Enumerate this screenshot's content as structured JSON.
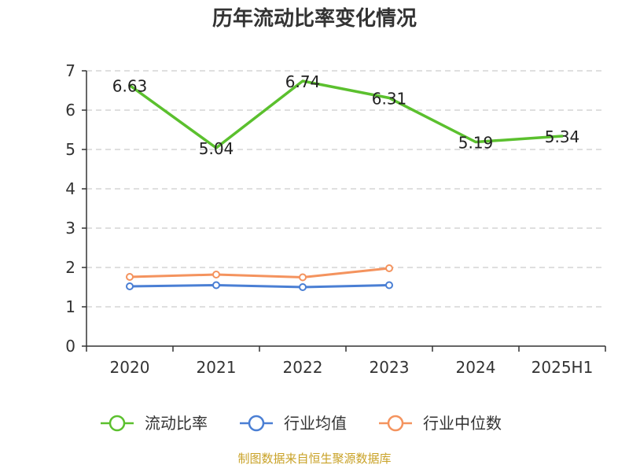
{
  "chart_data": {
    "type": "line",
    "title": "历年流动比率变化情况",
    "categories": [
      "2020",
      "2021",
      "2022",
      "2023",
      "2024",
      "2025H1"
    ],
    "ylim": [
      0,
      7
    ],
    "yticks": [
      0,
      1,
      2,
      3,
      4,
      5,
      6,
      7
    ],
    "grid": true,
    "legend_position": "bottom",
    "series": [
      {
        "name": "流动比率",
        "color": "#5bc02e",
        "values": [
          6.63,
          5.04,
          6.74,
          6.31,
          5.19,
          5.34
        ],
        "labels": [
          "6.63",
          "5.04",
          "6.74",
          "6.31",
          "5.19",
          "5.34"
        ],
        "markers": false
      },
      {
        "name": "行业均值",
        "color": "#4a7fd4",
        "values": [
          1.52,
          1.55,
          1.5,
          1.55,
          null,
          null
        ],
        "markers": true
      },
      {
        "name": "行业中位数",
        "color": "#f4935e",
        "values": [
          1.76,
          1.82,
          1.75,
          1.98,
          null,
          null
        ],
        "markers": true
      }
    ],
    "source": "制图数据来自恒生聚源数据库"
  }
}
